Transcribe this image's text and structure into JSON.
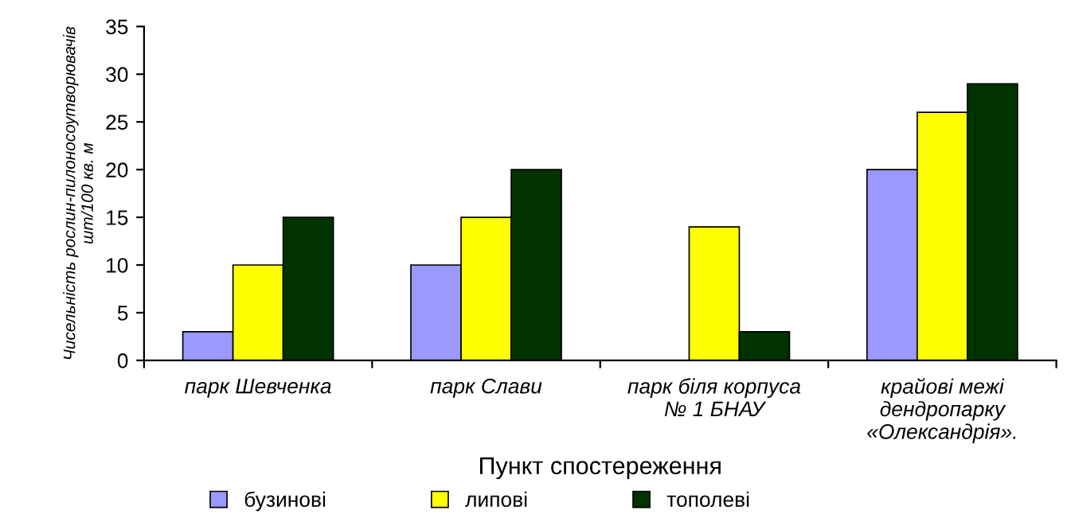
{
  "chart_data": {
    "type": "bar",
    "ylabel": "Чисельність рослин-пилоносоутворювачів\nшт/100 кв. м",
    "xlabel": "Пункт спостереження",
    "categories": [
      "парк Шевченка",
      "парк Слави",
      "парк біля корпуса\n№ 1 БНАУ",
      "крайові межі\nдендропарку\n«Олександрія»."
    ],
    "series": [
      {
        "name": "бузинові",
        "color": "#9999ff",
        "values": [
          3,
          10,
          null,
          20
        ]
      },
      {
        "name": "липові",
        "color": "#ffff00",
        "values": [
          10,
          15,
          14,
          26
        ]
      },
      {
        "name": "тополеві",
        "color": "#003300",
        "values": [
          15,
          20,
          3,
          29
        ]
      }
    ],
    "ylim": [
      0,
      35
    ],
    "yticks": [
      0,
      5,
      10,
      15,
      20,
      25,
      30,
      35
    ],
    "grid": false,
    "legend": "bottom"
  }
}
